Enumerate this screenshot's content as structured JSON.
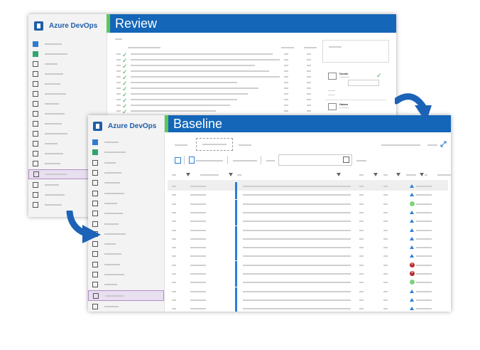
{
  "review_window": {
    "brand": "Azure DevOps",
    "title": "Review"
  },
  "baseline_window": {
    "brand": "Azure DevOps",
    "title": "Baseline"
  },
  "colors": {
    "header_blue": "#1466b8",
    "header_accent": "#5cc85a",
    "brand_blue": "#1f5ea8",
    "marker_blue": "#2b7fd6",
    "check_green": "#3aa655",
    "status_red": "#b52a2a",
    "status_green": "#7ed37a",
    "selected_nav": "#e8dff0",
    "arrow_blue": "#1c63b7"
  },
  "icons": {
    "nav": [
      "boards-icon",
      "repos-icon",
      "file-icon",
      "grid-icon",
      "list-icon",
      "bell-icon",
      "filter-list-icon",
      "book-icon",
      "page-icon",
      "cloud-icon",
      "doc-icon",
      "org-icon",
      "gear-icon",
      "edit-doc-icon",
      "branch-icon",
      "gauge-icon",
      "report-icon"
    ],
    "toolbar": [
      "save-icon",
      "export-icon",
      "calendar-icon",
      "expand-icon"
    ],
    "arrows": [
      "curved-arrow-down-right-icon",
      "curved-arrow-down-left-icon"
    ]
  },
  "baseline_rows": [
    {
      "status": "triangle"
    },
    {
      "status": "triangle"
    },
    {
      "status": "circle-green"
    },
    {
      "status": "triangle"
    },
    {
      "status": "triangle"
    },
    {
      "status": "triangle"
    },
    {
      "status": "triangle"
    },
    {
      "status": "triangle"
    },
    {
      "status": "triangle"
    },
    {
      "status": "circle-red"
    },
    {
      "status": "circle-red"
    },
    {
      "status": "circle-green"
    },
    {
      "status": "triangle"
    },
    {
      "status": "triangle"
    },
    {
      "status": "triangle"
    },
    {
      "status": "circle-red"
    }
  ],
  "review_panel": {
    "users": [
      "Dustin",
      "Hasan",
      "Hier"
    ]
  }
}
